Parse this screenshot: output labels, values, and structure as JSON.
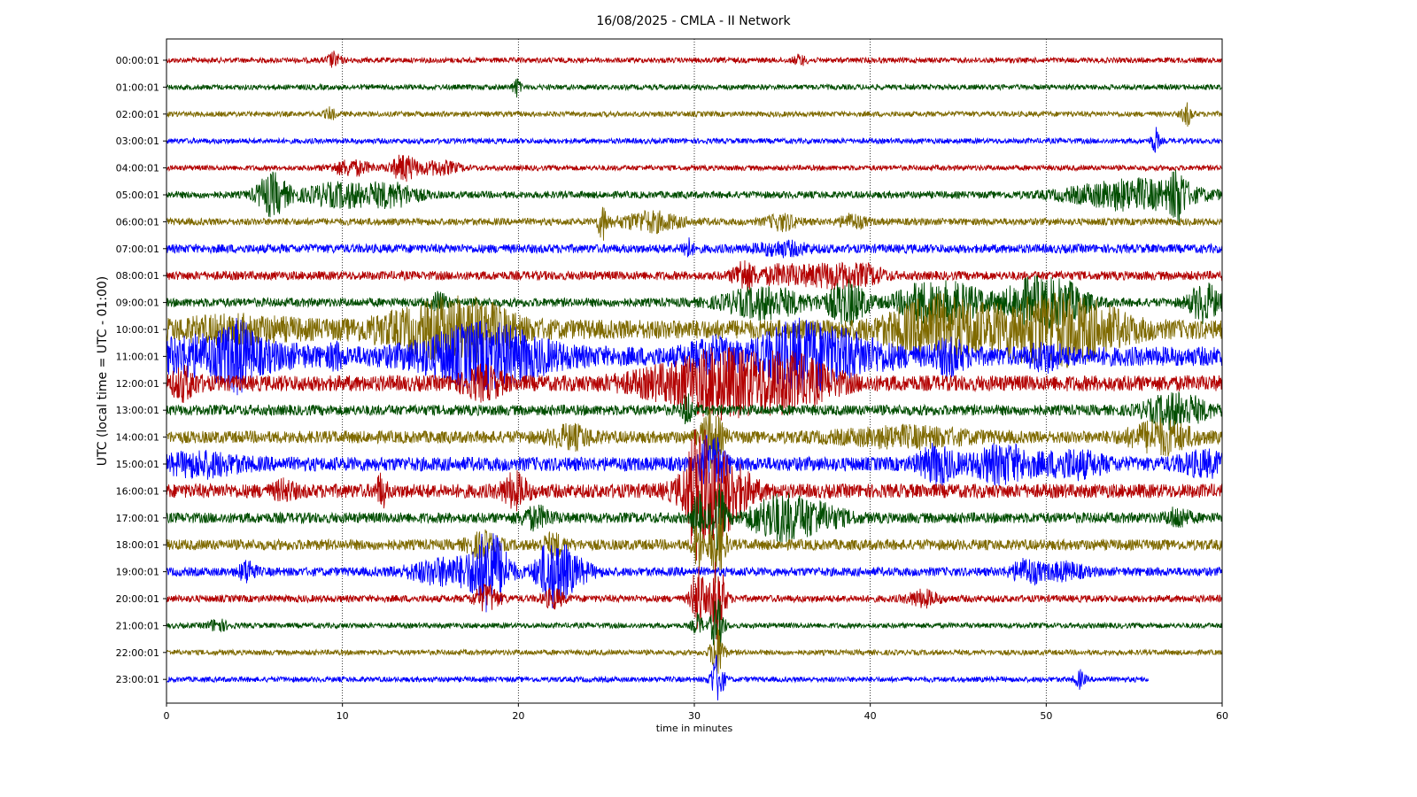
{
  "chart_data": {
    "type": "line",
    "title": "16/08/2025 - CMLA - II Network",
    "xlabel": "time in minutes",
    "ylabel": "UTC (local time = UTC - 01:00)",
    "xlim": [
      0,
      60
    ],
    "x_ticks": [
      "0",
      "10",
      "20",
      "30",
      "40",
      "50",
      "60"
    ],
    "grid_x": true,
    "grid_style": "dotted",
    "line_colors": [
      "#b30000",
      "#004d00",
      "#7f6a00",
      "#0000ff"
    ],
    "rows": [
      {
        "label": "00:00:01",
        "color": "#b30000",
        "noise": 3,
        "end": 60,
        "events": [
          [
            9.5,
            8,
            0.25
          ],
          [
            36,
            5,
            0.25
          ]
        ]
      },
      {
        "label": "01:00:01",
        "color": "#004d00",
        "noise": 3,
        "end": 60,
        "events": [
          [
            19.9,
            10,
            0.15
          ]
        ]
      },
      {
        "label": "02:00:01",
        "color": "#7f6a00",
        "noise": 3,
        "end": 60,
        "events": [
          [
            9.3,
            6,
            0.2
          ],
          [
            58,
            12,
            0.2
          ]
        ]
      },
      {
        "label": "03:00:01",
        "color": "#0000ff",
        "noise": 3,
        "end": 60,
        "events": [
          [
            56.2,
            14,
            0.15
          ]
        ]
      },
      {
        "label": "04:00:01",
        "color": "#b30000",
        "noise": 3,
        "end": 60,
        "events": [
          [
            10.5,
            8,
            0.8
          ],
          [
            13.5,
            14,
            0.5
          ],
          [
            15.5,
            7,
            0.8
          ]
        ]
      },
      {
        "label": "05:00:01",
        "color": "#004d00",
        "noise": 4,
        "end": 60,
        "events": [
          [
            6,
            22,
            0.6
          ],
          [
            10,
            12,
            1.6
          ],
          [
            13,
            10,
            1.0
          ],
          [
            55,
            16,
            2.5
          ],
          [
            57.5,
            24,
            0.3
          ]
        ]
      },
      {
        "label": "06:00:01",
        "color": "#7f6a00",
        "noise": 4,
        "end": 60,
        "events": [
          [
            24.8,
            18,
            0.2
          ],
          [
            27.5,
            10,
            1.2
          ],
          [
            35,
            8,
            0.6
          ],
          [
            39,
            7,
            0.5
          ]
        ]
      },
      {
        "label": "07:00:01",
        "color": "#0000ff",
        "noise": 5,
        "end": 60,
        "events": [
          [
            29.6,
            10,
            0.2
          ],
          [
            35,
            6,
            1.0
          ]
        ]
      },
      {
        "label": "08:00:01",
        "color": "#b30000",
        "noise": 5,
        "end": 60,
        "events": [
          [
            32.8,
            16,
            0.4
          ],
          [
            35,
            9,
            1.0
          ],
          [
            38,
            12,
            1.2
          ],
          [
            40,
            6,
            0.6
          ]
        ]
      },
      {
        "label": "09:00:01",
        "color": "#004d00",
        "noise": 5,
        "end": 60,
        "events": [
          [
            15.5,
            10,
            0.3
          ],
          [
            34,
            16,
            1.6
          ],
          [
            38.7,
            22,
            0.8
          ],
          [
            42.5,
            10,
            0.8
          ],
          [
            44.5,
            20,
            1.5
          ],
          [
            49,
            22,
            1.0
          ],
          [
            51,
            20,
            1.0
          ],
          [
            59,
            20,
            0.6
          ]
        ]
      },
      {
        "label": "10:00:01",
        "color": "#7f6a00",
        "noise": 11,
        "end": 60,
        "events": [
          [
            4,
            8,
            2.5
          ],
          [
            15.5,
            20,
            2.5
          ],
          [
            17.5,
            14,
            1.5
          ],
          [
            44,
            30,
            2.0
          ],
          [
            50,
            32,
            2.0
          ],
          [
            53,
            12,
            1.5
          ]
        ]
      },
      {
        "label": "11:00:01",
        "color": "#0000ff",
        "noise": 11,
        "end": 60,
        "events": [
          [
            2.5,
            16,
            3.0
          ],
          [
            4,
            22,
            0.6
          ],
          [
            9.6,
            10,
            0.2
          ],
          [
            18,
            30,
            2.5
          ],
          [
            31,
            14,
            1.0
          ],
          [
            35.5,
            22,
            1.5
          ],
          [
            38,
            20,
            2.0
          ],
          [
            44.5,
            14,
            0.6
          ],
          [
            50,
            10,
            0.6
          ]
        ]
      },
      {
        "label": "12:00:01",
        "color": "#b30000",
        "noise": 9,
        "end": 60,
        "events": [
          [
            1,
            14,
            0.5
          ],
          [
            18,
            14,
            0.8
          ],
          [
            29,
            14,
            2.0
          ],
          [
            31.5,
            24,
            1.5
          ],
          [
            35.2,
            28,
            1.8
          ]
        ]
      },
      {
        "label": "13:00:01",
        "color": "#004d00",
        "noise": 6,
        "end": 60,
        "events": [
          [
            29.6,
            16,
            0.2
          ],
          [
            57,
            12,
            1.0
          ],
          [
            58,
            8,
            1.0
          ]
        ]
      },
      {
        "label": "14:00:01",
        "color": "#7f6a00",
        "noise": 7,
        "end": 60,
        "events": [
          [
            31,
            30,
            0.4
          ],
          [
            23,
            10,
            0.8
          ],
          [
            42,
            8,
            2.5
          ],
          [
            56.5,
            16,
            1.2
          ]
        ]
      },
      {
        "label": "15:00:01",
        "color": "#0000ff",
        "noise": 8,
        "end": 60,
        "events": [
          [
            2,
            10,
            1.5
          ],
          [
            31,
            30,
            0.5
          ],
          [
            43.8,
            18,
            0.7
          ],
          [
            47.5,
            18,
            1.2
          ],
          [
            51.5,
            12,
            1.2
          ],
          [
            59,
            10,
            1.0
          ]
        ]
      },
      {
        "label": "16:00:01",
        "color": "#b30000",
        "noise": 8,
        "end": 60,
        "events": [
          [
            12.2,
            16,
            0.2
          ],
          [
            19.8,
            16,
            0.5
          ],
          [
            30.2,
            42,
            0.4
          ],
          [
            31.2,
            48,
            1.2
          ],
          [
            6.7,
            8,
            0.4
          ]
        ]
      },
      {
        "label": "17:00:01",
        "color": "#004d00",
        "noise": 6,
        "end": 60,
        "events": [
          [
            30.2,
            28,
            0.2
          ],
          [
            31.3,
            40,
            0.3
          ],
          [
            21,
            10,
            0.6
          ],
          [
            34.5,
            18,
            1.0
          ],
          [
            36.5,
            16,
            1.3
          ],
          [
            57.5,
            10,
            0.4
          ]
        ]
      },
      {
        "label": "18:00:01",
        "color": "#7f6a00",
        "noise": 6,
        "end": 60,
        "events": [
          [
            30.2,
            26,
            0.2
          ],
          [
            31.3,
            40,
            0.3
          ],
          [
            18,
            12,
            0.6
          ],
          [
            22,
            10,
            0.5
          ]
        ]
      },
      {
        "label": "19:00:01",
        "color": "#0000ff",
        "noise": 5,
        "end": 60,
        "events": [
          [
            4.6,
            12,
            0.3
          ],
          [
            16,
            14,
            1.5
          ],
          [
            18.4,
            42,
            0.7
          ],
          [
            21.9,
            34,
            0.6
          ],
          [
            23,
            14,
            0.8
          ],
          [
            48.9,
            12,
            0.6
          ],
          [
            51,
            8,
            0.8
          ]
        ]
      },
      {
        "label": "20:00:01",
        "color": "#b30000",
        "noise": 4,
        "end": 60,
        "events": [
          [
            18.2,
            14,
            0.5
          ],
          [
            22,
            10,
            0.4
          ],
          [
            30.2,
            40,
            0.25
          ],
          [
            31.3,
            46,
            0.3
          ],
          [
            43,
            8,
            0.6
          ]
        ]
      },
      {
        "label": "21:00:01",
        "color": "#004d00",
        "noise": 3,
        "end": 60,
        "events": [
          [
            30.2,
            12,
            0.2
          ],
          [
            31.3,
            30,
            0.25
          ],
          [
            2.9,
            6,
            0.4
          ]
        ]
      },
      {
        "label": "22:00:01",
        "color": "#7f6a00",
        "noise": 3,
        "end": 60,
        "events": [
          [
            31.3,
            28,
            0.25
          ]
        ]
      },
      {
        "label": "23:00:01",
        "color": "#0000ff",
        "noise": 3,
        "end": 55.8,
        "events": [
          [
            31.3,
            26,
            0.25
          ],
          [
            51.9,
            9,
            0.2
          ]
        ]
      }
    ]
  }
}
